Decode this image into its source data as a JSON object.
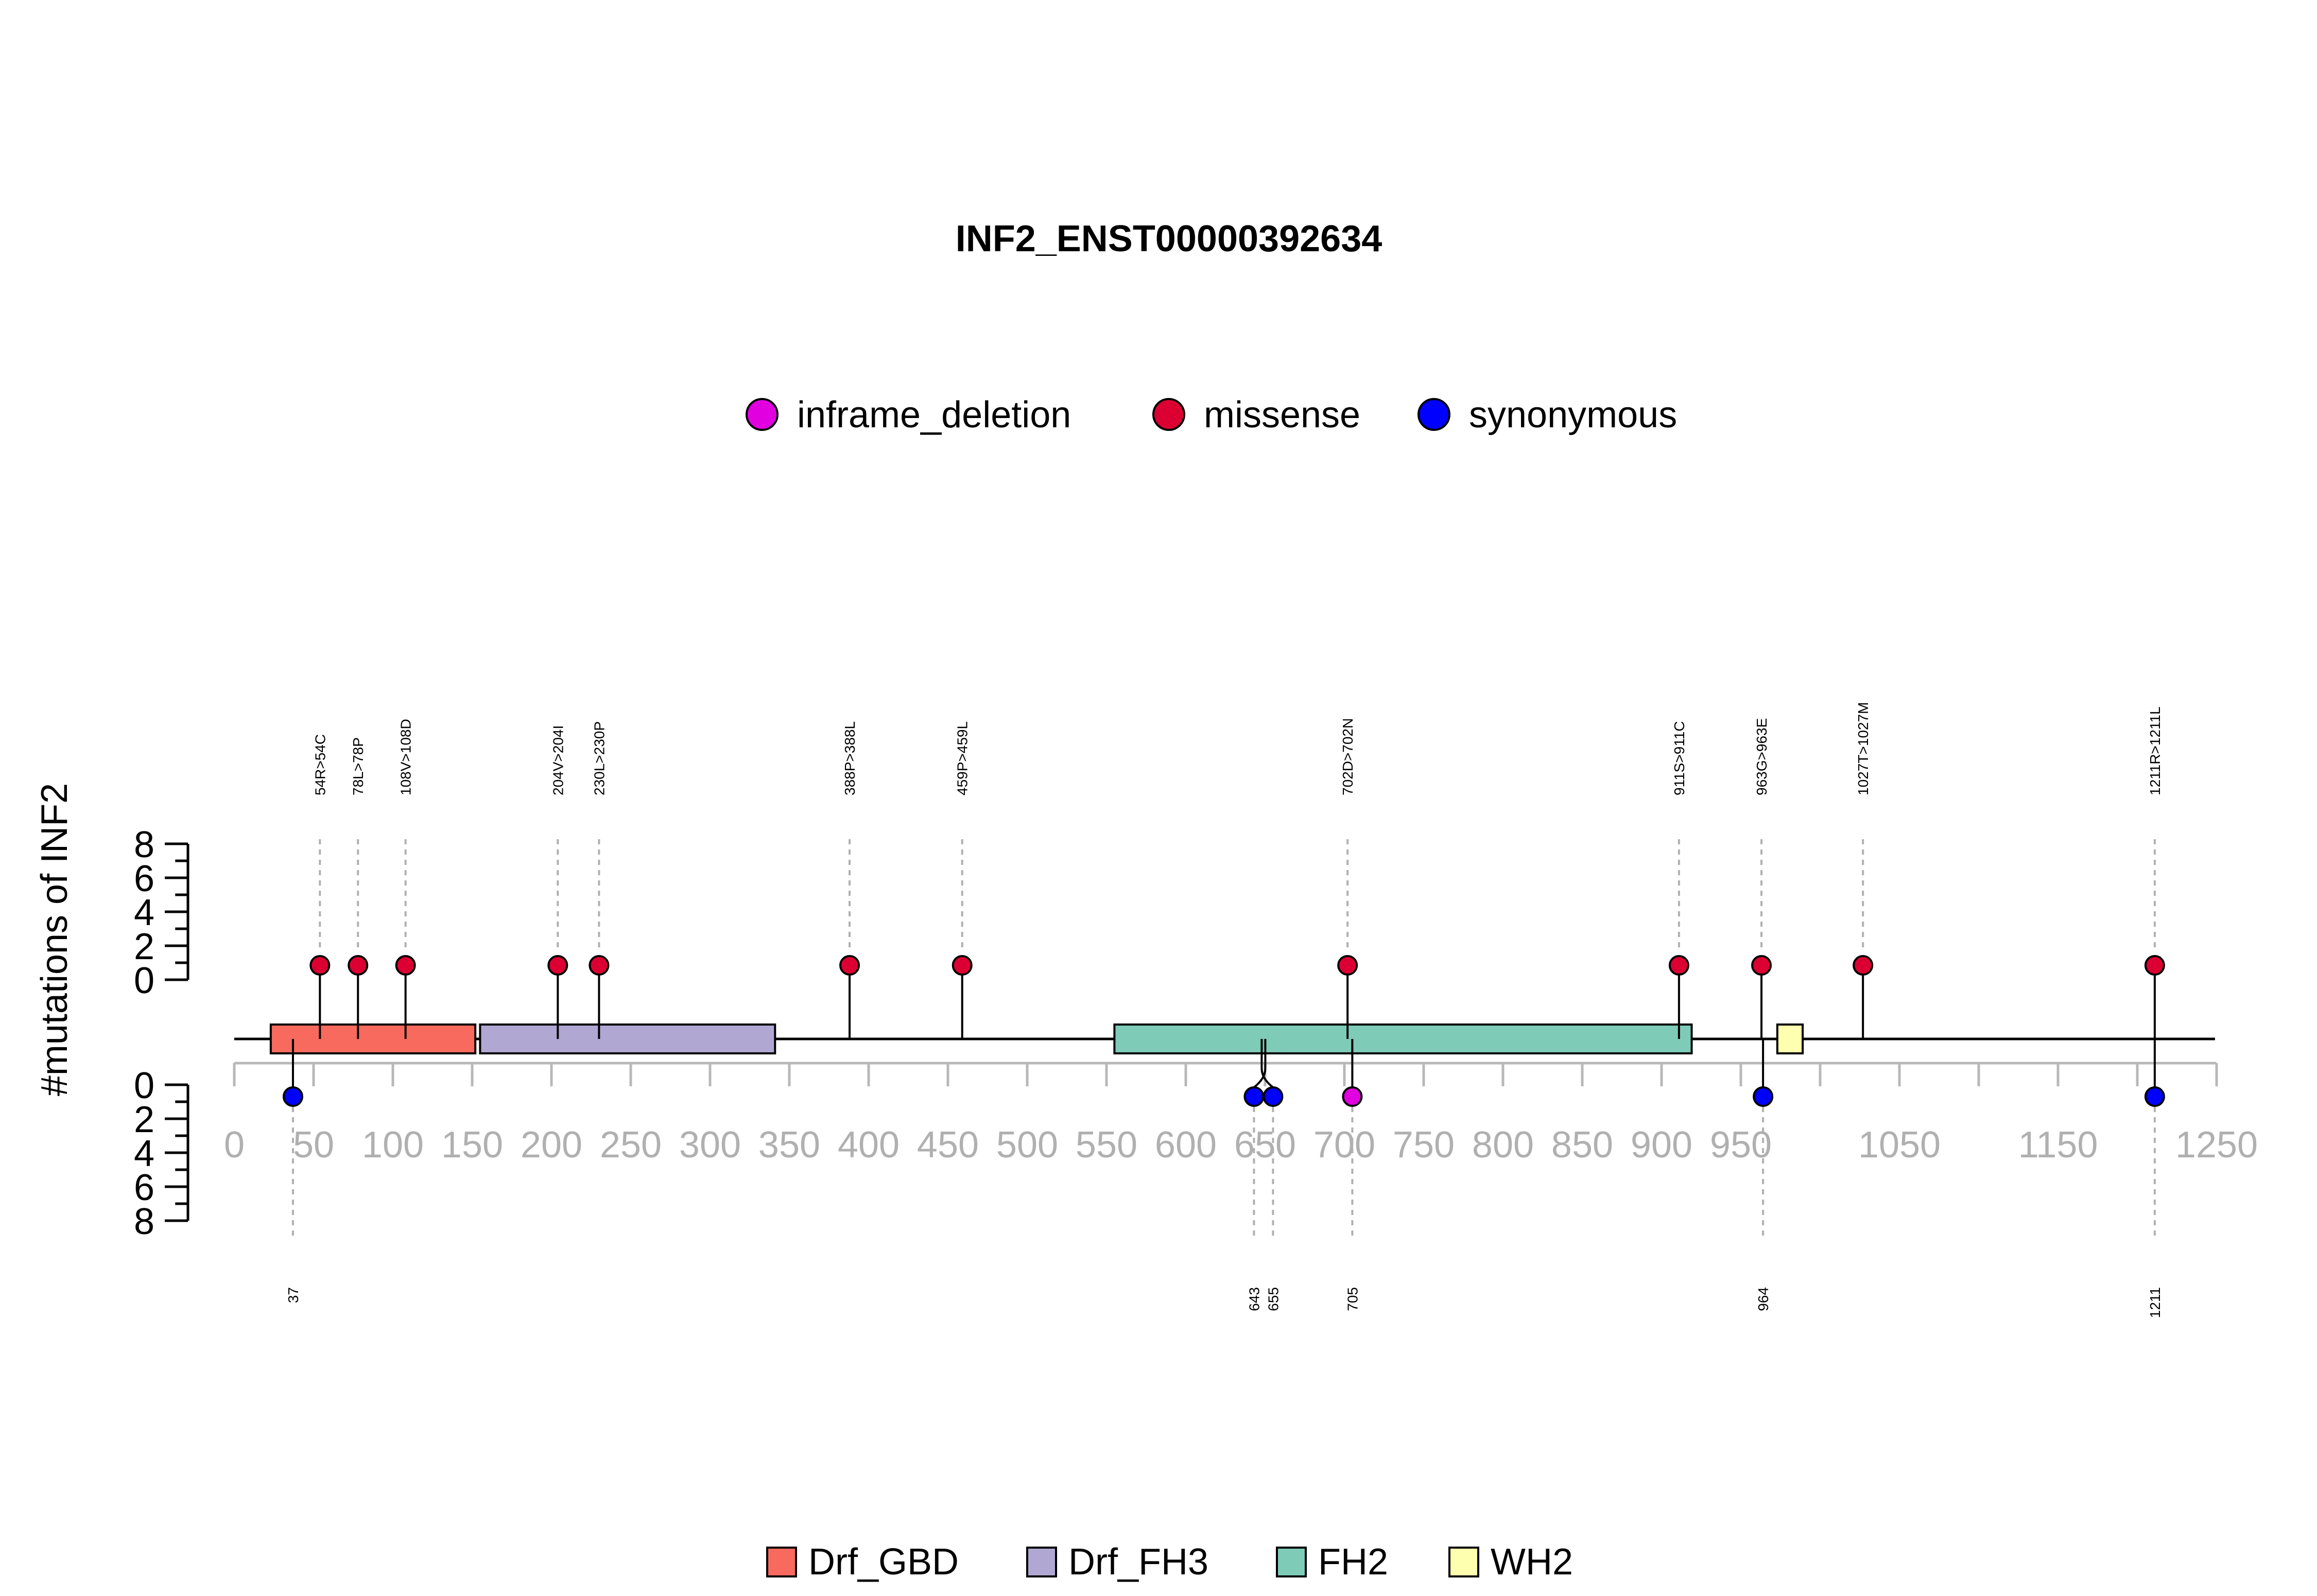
{
  "chart_data": {
    "type": "lollipop",
    "title": "INF2_ENST00000392634",
    "ylabel": "#mutations of INF2",
    "xlim": [
      0,
      1250
    ],
    "x_ticks": [
      0,
      50,
      100,
      150,
      200,
      250,
      300,
      350,
      400,
      450,
      500,
      550,
      600,
      650,
      700,
      750,
      800,
      850,
      900,
      950,
      1050,
      1150,
      1250
    ],
    "y_ticks": [
      0,
      2,
      4,
      6,
      8
    ],
    "ylim": [
      0,
      8
    ],
    "legend_position": "top",
    "mutation_types": [
      {
        "name": "inframe_deletion",
        "color": "#e000e0"
      },
      {
        "name": "missense",
        "color": "#dc0032"
      },
      {
        "name": "synonymous",
        "color": "#0000ff"
      }
    ],
    "domains_legend_position": "bottom",
    "domains": [
      {
        "name": "Drf_GBD",
        "start": 23,
        "end": 152,
        "color": "#f8695e"
      },
      {
        "name": "Drf_FH3",
        "start": 155,
        "end": 341,
        "color": "#b0a8d3"
      },
      {
        "name": "FH2",
        "start": 555,
        "end": 919,
        "color": "#7ecbb8"
      },
      {
        "name": "WH2",
        "start": 973,
        "end": 989,
        "color": "#ffffb0"
      }
    ],
    "protein_length": 1249,
    "mutations_above": [
      {
        "position": 54,
        "label": "54R>54C",
        "count": 1,
        "type": "missense"
      },
      {
        "position": 78,
        "label": "78L>78P",
        "count": 1,
        "type": "missense"
      },
      {
        "position": 108,
        "label": "108V>108D",
        "count": 1,
        "type": "missense"
      },
      {
        "position": 204,
        "label": "204V>204I",
        "count": 1,
        "type": "missense"
      },
      {
        "position": 230,
        "label": "230L>230P",
        "count": 1,
        "type": "missense"
      },
      {
        "position": 388,
        "label": "388P>388L",
        "count": 1,
        "type": "missense"
      },
      {
        "position": 459,
        "label": "459P>459L",
        "count": 1,
        "type": "missense"
      },
      {
        "position": 702,
        "label": "702D>702N",
        "count": 1,
        "type": "missense"
      },
      {
        "position": 911,
        "label": "911S>911C",
        "count": 1,
        "type": "missense"
      },
      {
        "position": 963,
        "label": "963G>963E",
        "count": 1,
        "type": "missense"
      },
      {
        "position": 1027,
        "label": "1027T>1027M",
        "count": 1,
        "type": "missense"
      },
      {
        "position": 1211,
        "label": "1211R>1211L",
        "count": 1,
        "type": "missense"
      }
    ],
    "mutations_below": [
      {
        "position": 37,
        "label": "37",
        "count": 1,
        "type": "synonymous"
      },
      {
        "position": 643,
        "label": "643",
        "count": 1,
        "type": "synonymous"
      },
      {
        "position": 655,
        "label": "655",
        "count": 1,
        "type": "synonymous"
      },
      {
        "position": 705,
        "label": "705",
        "count": 1,
        "type": "inframe_deletion"
      },
      {
        "position": 964,
        "label": "964",
        "count": 1,
        "type": "synonymous"
      },
      {
        "position": 1211,
        "label": "1211",
        "count": 1,
        "type": "synonymous"
      }
    ]
  }
}
